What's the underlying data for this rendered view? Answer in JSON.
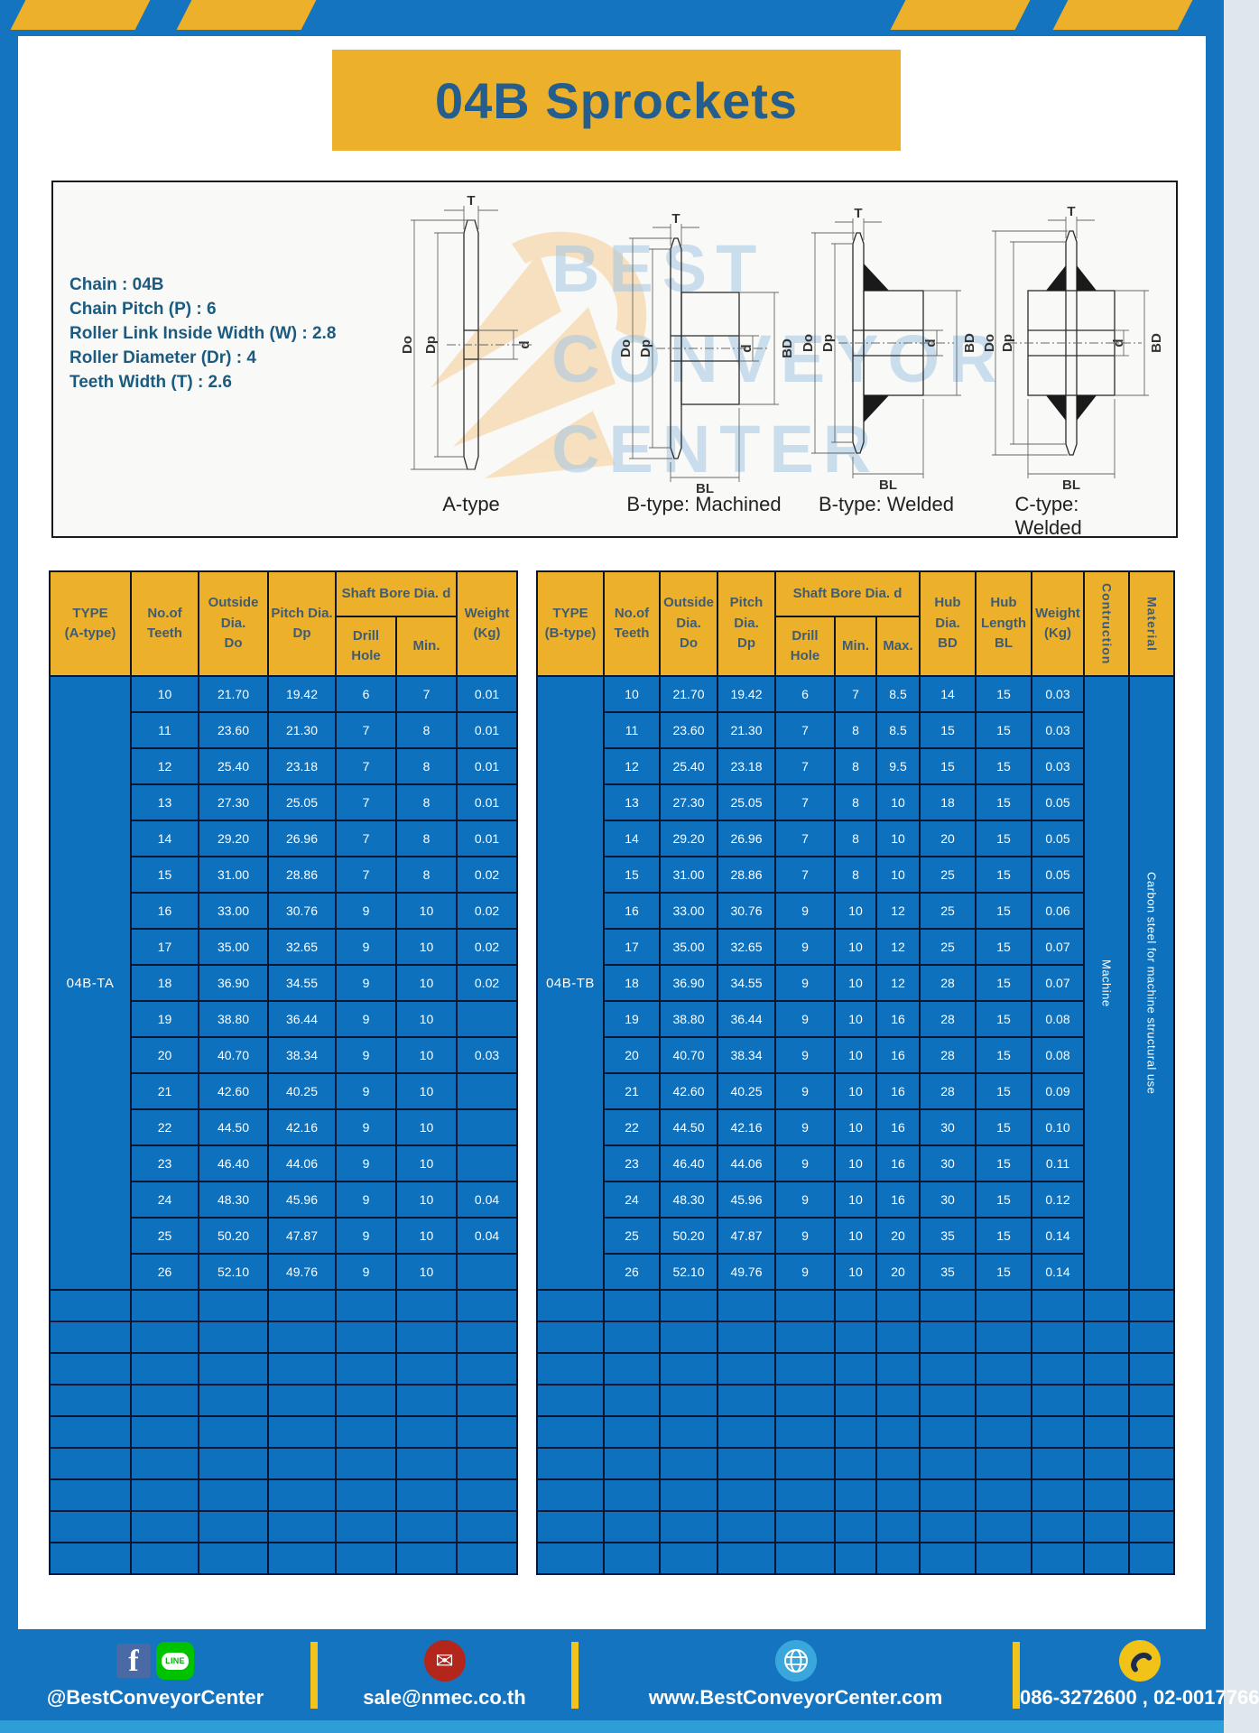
{
  "page": {
    "title": "04B Sprockets"
  },
  "specs": {
    "lines": [
      "Chain : 04B",
      "Chain Pitch (P) : 6",
      "Roller Link Inside Width (W) : 2.8",
      "Roller Diameter (Dr) : 4",
      "Teeth Width (T) : 2.6"
    ]
  },
  "diagrams": {
    "captions": [
      "A-type",
      "B-type: Machined",
      "B-type: Welded",
      "C-type: Welded"
    ],
    "dim_labels": {
      "t": "T",
      "do": "Do",
      "dp": "Dp",
      "d": "d",
      "bd": "BD",
      "bl": "BL"
    }
  },
  "watermark": {
    "lines": [
      "BEST",
      "CONVEYOR",
      "CENTER"
    ]
  },
  "colors": {
    "accent_yellow": "#edb02a",
    "table_blue": "#0d71bd",
    "frame_blue": "#1574bf",
    "grid_line": "#0c1531",
    "footer_strip": "#2d9ed8"
  },
  "table_a": {
    "headers": {
      "type": "TYPE\n(A-type)",
      "teeth": "No.of\nTeeth",
      "outside": "Outside\nDia.\nDo",
      "pitch": "Pitch Dia.\nDp",
      "shaft_bore": "Shaft Bore Dia. d",
      "drill": "Drill Hole",
      "min": "Min.",
      "weight": "Weight\n(Kg)"
    },
    "type_value": "04B-TA",
    "rows": [
      [
        "10",
        "21.70",
        "19.42",
        "6",
        "7",
        "0.01"
      ],
      [
        "11",
        "23.60",
        "21.30",
        "7",
        "8",
        "0.01"
      ],
      [
        "12",
        "25.40",
        "23.18",
        "7",
        "8",
        "0.01"
      ],
      [
        "13",
        "27.30",
        "25.05",
        "7",
        "8",
        "0.01"
      ],
      [
        "14",
        "29.20",
        "26.96",
        "7",
        "8",
        "0.01"
      ],
      [
        "15",
        "31.00",
        "28.86",
        "7",
        "8",
        "0.02"
      ],
      [
        "16",
        "33.00",
        "30.76",
        "9",
        "10",
        "0.02"
      ],
      [
        "17",
        "35.00",
        "32.65",
        "9",
        "10",
        "0.02"
      ],
      [
        "18",
        "36.90",
        "34.55",
        "9",
        "10",
        "0.02"
      ],
      [
        "19",
        "38.80",
        "36.44",
        "9",
        "10",
        ""
      ],
      [
        "20",
        "40.70",
        "38.34",
        "9",
        "10",
        "0.03"
      ],
      [
        "21",
        "42.60",
        "40.25",
        "9",
        "10",
        ""
      ],
      [
        "22",
        "44.50",
        "42.16",
        "9",
        "10",
        ""
      ],
      [
        "23",
        "46.40",
        "44.06",
        "9",
        "10",
        ""
      ],
      [
        "24",
        "48.30",
        "45.96",
        "9",
        "10",
        "0.04"
      ],
      [
        "25",
        "50.20",
        "47.87",
        "9",
        "10",
        "0.04"
      ],
      [
        "26",
        "52.10",
        "49.76",
        "9",
        "10",
        ""
      ]
    ],
    "empty_row_count": 9
  },
  "table_b": {
    "headers": {
      "type": "TYPE\n(B-type)",
      "teeth": "No.of\nTeeth",
      "outside": "Outside\nDia.\nDo",
      "pitch": "Pitch Dia.\nDp",
      "shaft_bore": "Shaft Bore Dia. d",
      "drill": "Drill Hole",
      "min": "Min.",
      "max": "Max.",
      "hub_dia": "Hub Dia.\nBD",
      "hub_length": "Hub\nLength\nBL",
      "weight": "Weight\n(Kg)",
      "construction": "Contruction",
      "material": "Material"
    },
    "type_value": "04B-TB",
    "construction_value": "Machine",
    "material_value": "Carbon steel for machine structural use",
    "rows": [
      [
        "10",
        "21.70",
        "19.42",
        "6",
        "7",
        "8.5",
        "14",
        "15",
        "0.03"
      ],
      [
        "11",
        "23.60",
        "21.30",
        "7",
        "8",
        "8.5",
        "15",
        "15",
        "0.03"
      ],
      [
        "12",
        "25.40",
        "23.18",
        "7",
        "8",
        "9.5",
        "15",
        "15",
        "0.03"
      ],
      [
        "13",
        "27.30",
        "25.05",
        "7",
        "8",
        "10",
        "18",
        "15",
        "0.05"
      ],
      [
        "14",
        "29.20",
        "26.96",
        "7",
        "8",
        "10",
        "20",
        "15",
        "0.05"
      ],
      [
        "15",
        "31.00",
        "28.86",
        "7",
        "8",
        "10",
        "25",
        "15",
        "0.05"
      ],
      [
        "16",
        "33.00",
        "30.76",
        "9",
        "10",
        "12",
        "25",
        "15",
        "0.06"
      ],
      [
        "17",
        "35.00",
        "32.65",
        "9",
        "10",
        "12",
        "25",
        "15",
        "0.07"
      ],
      [
        "18",
        "36.90",
        "34.55",
        "9",
        "10",
        "12",
        "28",
        "15",
        "0.07"
      ],
      [
        "19",
        "38.80",
        "36.44",
        "9",
        "10",
        "16",
        "28",
        "15",
        "0.08"
      ],
      [
        "20",
        "40.70",
        "38.34",
        "9",
        "10",
        "16",
        "28",
        "15",
        "0.08"
      ],
      [
        "21",
        "42.60",
        "40.25",
        "9",
        "10",
        "16",
        "28",
        "15",
        "0.09"
      ],
      [
        "22",
        "44.50",
        "42.16",
        "9",
        "10",
        "16",
        "30",
        "15",
        "0.10"
      ],
      [
        "23",
        "46.40",
        "44.06",
        "9",
        "10",
        "16",
        "30",
        "15",
        "0.11"
      ],
      [
        "24",
        "48.30",
        "45.96",
        "9",
        "10",
        "16",
        "30",
        "15",
        "0.12"
      ],
      [
        "25",
        "50.20",
        "47.87",
        "9",
        "10",
        "20",
        "35",
        "15",
        "0.14"
      ],
      [
        "26",
        "52.10",
        "49.76",
        "9",
        "10",
        "20",
        "35",
        "15",
        "0.14"
      ]
    ],
    "empty_row_count": 9
  },
  "footer": {
    "social_handle": "@BestConveyorCenter",
    "line_label": "LINE",
    "fb_letter": "f",
    "email": "sale@nmec.co.th",
    "website": "www.BestConveyorCenter.com",
    "phone": "086-3272600 , 02-0017766",
    "mail_glyph": "✉"
  }
}
